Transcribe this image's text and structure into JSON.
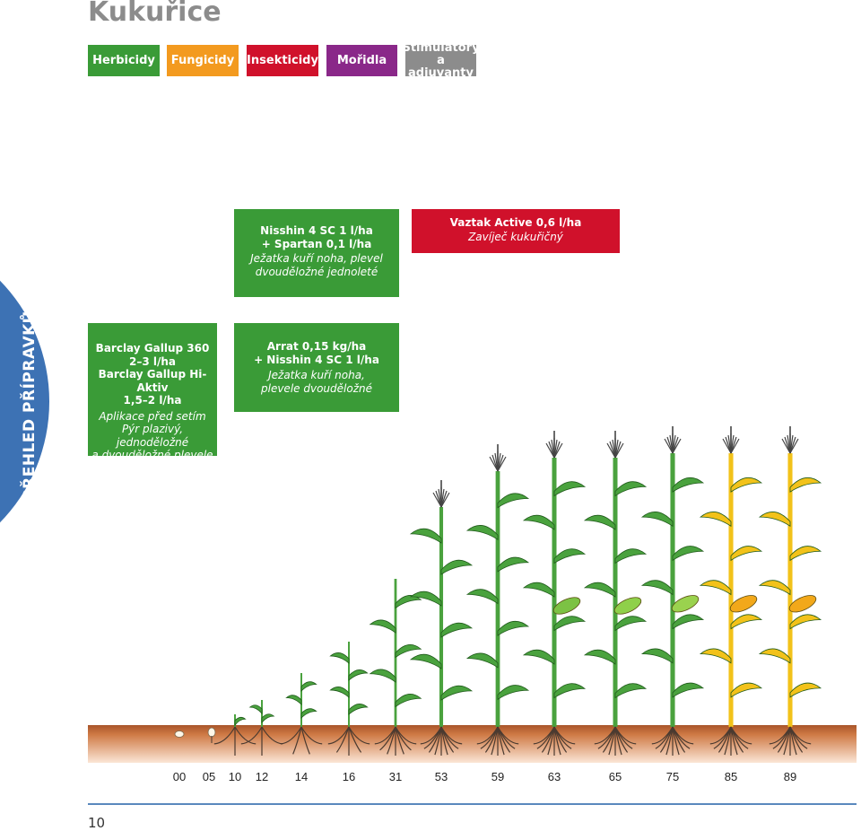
{
  "title": "Kukuřice",
  "tabs": [
    {
      "label": "Herbicidy",
      "color": "#3a9b37"
    },
    {
      "label": "Fungicidy",
      "color": "#f39a1f"
    },
    {
      "label": "Insekticidy",
      "color": "#d0112b"
    },
    {
      "label": "Mořidla",
      "color": "#8a2889"
    },
    {
      "label": "Stimulátory\na adjuvanty",
      "color": "#8c8c8c"
    }
  ],
  "side_label": "PŘEHLED PŘÍPRAVKŮ",
  "products": {
    "nisshin": {
      "lines": [
        "Nisshin 4 SC 1 l/ha",
        "+ Spartan 0,1 l/ha"
      ],
      "note": [
        "Ježatka kuří noha, plevel",
        "dvouděložné jednoleté"
      ]
    },
    "vaztak": {
      "lines": [
        "Vaztak Active 0,6 l/ha"
      ],
      "note": [
        "Zavíječ kukuřičný"
      ]
    },
    "barclay": {
      "lines": [
        "Barclay Gallup 360",
        "2–3 l/ha",
        "Barclay Gallup Hi-Aktiv",
        "1,5–2 l/ha"
      ],
      "note": [
        "Aplikace před setím",
        "Pýr plazivý, jednoděložné",
        "a dvouděložné plevele"
      ]
    },
    "arrat": {
      "lines": [
        "Arrat 0,15 kg/ha",
        "+ Nisshin 4 SC 1 l/ha"
      ],
      "note": [
        "Ježatka kuří noha,",
        "plevele dvouděložné"
      ]
    }
  },
  "growth_stages": [
    "00",
    "05",
    "10",
    "12",
    "14",
    "16",
    "31",
    "53",
    "59",
    "63",
    "65",
    "75",
    "85",
    "89"
  ],
  "page_number": "10",
  "colors": {
    "herbicide": "#3a9b37",
    "insecticide": "#d0112b",
    "soil": "#c4703f",
    "plant_green": "#4aa23e",
    "plant_ripe": "#f2c21a",
    "side_band": "#3d72b4"
  }
}
